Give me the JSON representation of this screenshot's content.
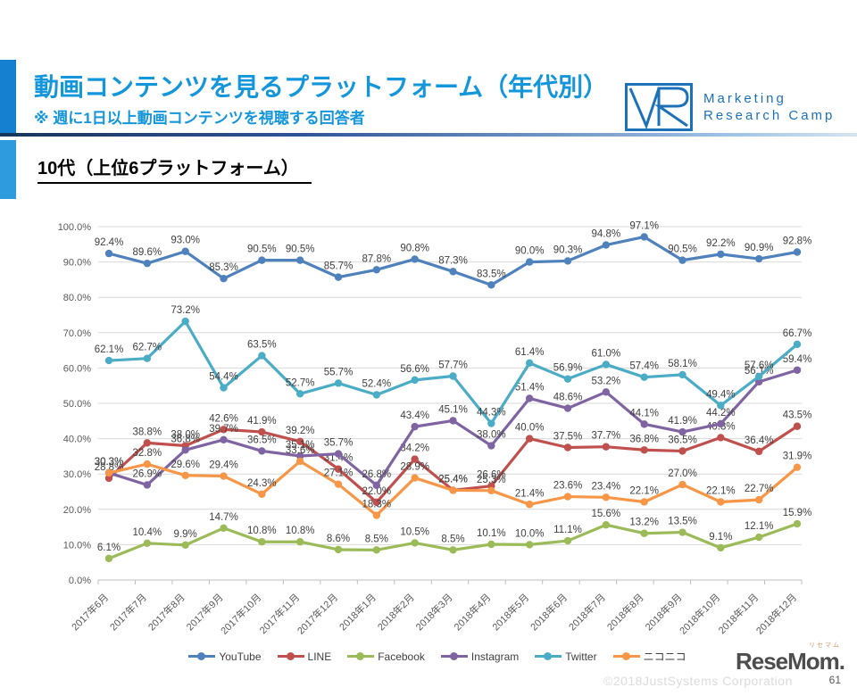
{
  "header": {
    "title": "動画コンテンツを見るプラットフォーム（年代別）",
    "subtitle": "※ 週に1日以上動画コンテンツを視聴する回答者",
    "logo_line1": "Marketing",
    "logo_line2": "Research Camp",
    "accent_color": "#1496DB",
    "logo_color": "#1D71B8"
  },
  "section": {
    "title": "10代（上位6プラットフォーム）"
  },
  "chart_data": {
    "type": "line",
    "title": "10代（上位6プラットフォーム）",
    "xlabel": "",
    "ylabel": "",
    "ylim": [
      0,
      100
    ],
    "ytick_step": 10,
    "ytick_suffix": "%",
    "grid": true,
    "data_labels": true,
    "legend_position": "bottom",
    "categories": [
      "2017年6月",
      "2017年7月",
      "2017年8月",
      "2017年9月",
      "2017年10月",
      "2017年11月",
      "2017年12月",
      "2018年1月",
      "2018年2月",
      "2018年3月",
      "2018年4月",
      "2018年5月",
      "2018年6月",
      "2018年7月",
      "2018年8月",
      "2018年9月",
      "2018年10月",
      "2018年11月",
      "2018年12月"
    ],
    "series": [
      {
        "name": "YouTube",
        "color": "#4F81BD",
        "values": [
          92.4,
          89.6,
          93.0,
          85.3,
          90.5,
          90.5,
          85.7,
          87.8,
          90.8,
          87.3,
          83.5,
          90.0,
          90.3,
          94.8,
          97.1,
          90.5,
          92.2,
          90.9,
          92.8
        ]
      },
      {
        "name": "LINE",
        "color": "#C0504D",
        "values": [
          28.8,
          38.8,
          38.0,
          42.6,
          41.9,
          39.2,
          31.4,
          22.0,
          34.2,
          25.4,
          26.6,
          40.0,
          37.5,
          37.7,
          36.8,
          36.5,
          40.3,
          36.4,
          43.5
        ]
      },
      {
        "name": "Facebook",
        "color": "#9BBB59",
        "values": [
          6.1,
          10.4,
          9.9,
          14.7,
          10.8,
          10.8,
          8.6,
          8.5,
          10.5,
          8.5,
          10.1,
          10.0,
          11.1,
          15.6,
          13.2,
          13.5,
          9.1,
          12.1,
          15.9
        ]
      },
      {
        "name": "Instagram",
        "color": "#8064A2",
        "values": [
          30.3,
          26.9,
          36.8,
          39.7,
          36.5,
          35.1,
          35.7,
          26.8,
          43.4,
          45.1,
          38.0,
          51.4,
          48.6,
          53.2,
          44.1,
          41.9,
          44.2,
          56.1,
          59.4
        ]
      },
      {
        "name": "Twitter",
        "color": "#4BACC6",
        "values": [
          62.1,
          62.7,
          73.2,
          54.4,
          63.5,
          52.7,
          55.7,
          52.4,
          56.6,
          57.7,
          44.3,
          61.4,
          56.9,
          61.0,
          57.4,
          58.1,
          49.4,
          57.6,
          66.7
        ]
      },
      {
        "name": "ニコニコ",
        "color": "#F79646",
        "values": [
          30.3,
          32.8,
          29.6,
          29.4,
          24.3,
          33.6,
          27.1,
          18.3,
          28.9,
          25.4,
          25.3,
          21.4,
          23.6,
          23.4,
          22.1,
          27.0,
          22.1,
          22.7,
          31.9
        ]
      }
    ]
  },
  "footer": {
    "watermark": "©2018JustSystems Corporation",
    "brand": "ReseMom.",
    "brand_ruby": "リセマム",
    "page_number": "61"
  }
}
